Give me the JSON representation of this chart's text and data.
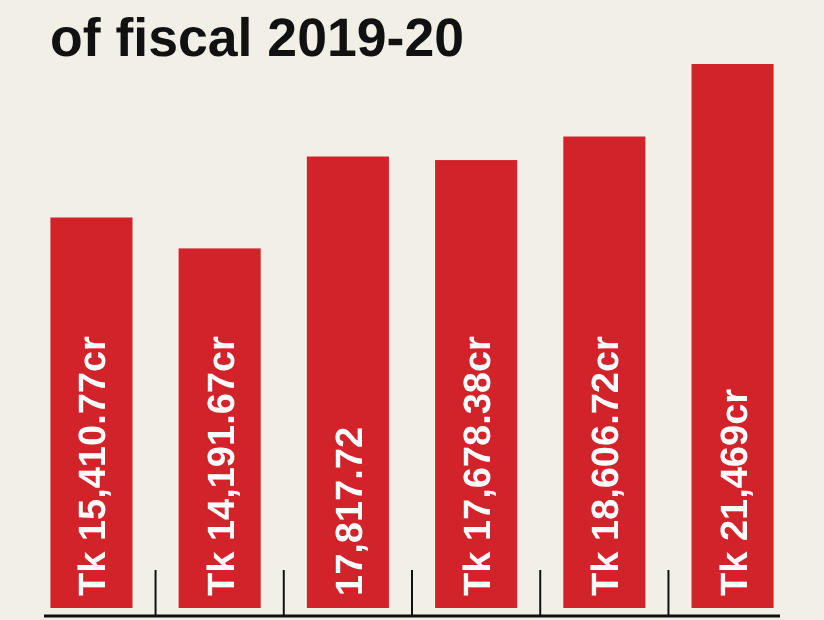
{
  "chart_data": {
    "type": "bar",
    "title": "of fiscal 2019-20",
    "categories": [
      null,
      null,
      null,
      null,
      null,
      null
    ],
    "values": [
      15410.77,
      14191.67,
      17817.72,
      17678.38,
      18606.72,
      21469
    ],
    "value_labels": [
      "Tk 15,410.77cr",
      "Tk 14,191.67cr",
      "17,817.72",
      "Tk 17,678.38cr",
      "Tk 18,606.72cr",
      "Tk 21,469cr"
    ],
    "color": "#d2232a"
  }
}
